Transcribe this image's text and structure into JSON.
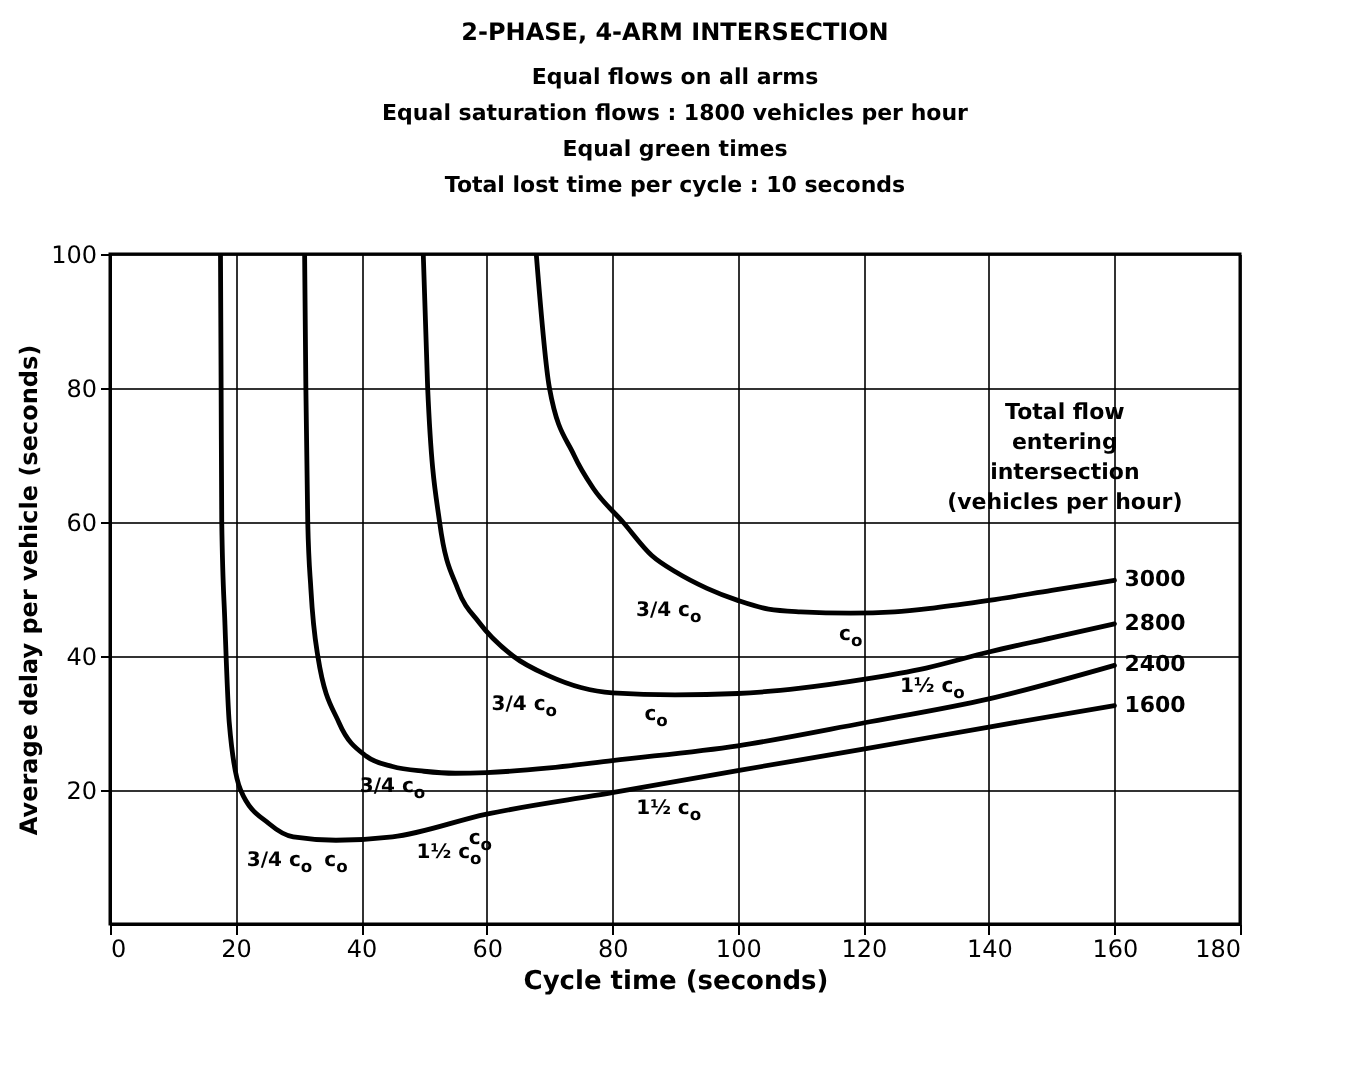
{
  "chart_data": {
    "type": "line",
    "title": "2-PHASE, 4-ARM INTERSECTION",
    "annotations": [
      "Equal flows on all arms",
      "Equal saturation flows : 1800 vehicles per hour",
      "Equal green times",
      "Total lost time per cycle : 10 seconds",
      {
        "text": "3/4 c$_{o}$",
        "x": 27,
        "y": 12.5
      },
      {
        "text": "c$_{o}$",
        "x": 36,
        "y": 12.5
      },
      {
        "text": "1½ c$_{o}$",
        "x": 54,
        "y": 15.3
      },
      {
        "text": "3/4 c$_{o}$",
        "x": 45,
        "y": 23.5
      },
      {
        "text": "c$_{o}$",
        "x": 59,
        "y": 22.6
      },
      {
        "text": "1½ c$_{o}$",
        "x": 89,
        "y": 25.3
      },
      {
        "text": "3/4 c$_{o}$",
        "x": 66,
        "y": 39
      },
      {
        "text": "c$_{o}$",
        "x": 87,
        "y": 34.2
      },
      {
        "text": "1½ c$_{o}$",
        "x": 131,
        "y": 38.4
      },
      {
        "text": "3/4 c$_{o}$",
        "x": 89,
        "y": 53
      },
      {
        "text": "c$_{o}$",
        "x": 118,
        "y": 46.4
      }
    ],
    "xlabel": "Cycle time (seconds)",
    "ylabel": "Average delay per vehicle (seconds)",
    "legend_title": "Total flow\nentering\nintersection\n(vehicles per hour)",
    "xlim": [
      0,
      180
    ],
    "xticks": [
      0,
      20,
      40,
      60,
      80,
      100,
      120,
      140,
      160,
      180
    ],
    "ylim": [
      0,
      100
    ],
    "yticks": [
      20,
      40,
      60,
      80,
      100
    ],
    "grid": true,
    "series": [
      {
        "name": "3000",
        "color": "#000000",
        "x": [
          67.9,
          70,
          73.9,
          77,
          81.7,
          86.3,
          90.2,
          95.1,
          100,
          104.9,
          110,
          118,
          125,
          131.4,
          140,
          150,
          160
        ],
        "values": [
          100,
          80,
          70,
          65,
          60,
          55,
          52.5,
          50.1,
          48.3,
          47,
          46.6,
          46.4,
          46.6,
          47.2,
          48.3,
          49.8,
          51.3
        ]
      },
      {
        "name": "2800",
        "color": "#000000",
        "x": [
          49.9,
          50.6,
          52.5,
          55.4,
          58.8,
          64.2,
          70,
          75,
          80,
          90,
          100,
          110,
          120,
          130,
          140,
          150,
          160
        ],
        "values": [
          100,
          80,
          60,
          50,
          45,
          40,
          37,
          35.3,
          34.5,
          34.2,
          34.4,
          35.2,
          36.5,
          38.2,
          40.6,
          42.7,
          44.8
        ]
      },
      {
        "name": "2400",
        "color": "#000000",
        "x": [
          31,
          31.2,
          31.5,
          32,
          33.1,
          36.5,
          40.9,
          45,
          50,
          55,
          60,
          70,
          80,
          100,
          120,
          140,
          160
        ],
        "values": [
          100,
          80,
          60,
          50,
          40,
          30,
          25,
          23.5,
          22.8,
          22.5,
          22.6,
          23.3,
          24.4,
          26.6,
          30,
          33.6,
          38.6
        ]
      },
      {
        "name": "1600",
        "color": "#000000",
        "x": [
          17.6,
          17.7,
          17.8,
          18.3,
          19,
          20.8,
          25.3,
          29.2,
          36,
          45,
          60,
          80,
          100,
          120,
          140,
          160
        ],
        "values": [
          100,
          80,
          60,
          45,
          30,
          20,
          15,
          13,
          12.5,
          13,
          16.4,
          19.6,
          22.9,
          26.1,
          29.4,
          32.6
        ]
      }
    ]
  }
}
